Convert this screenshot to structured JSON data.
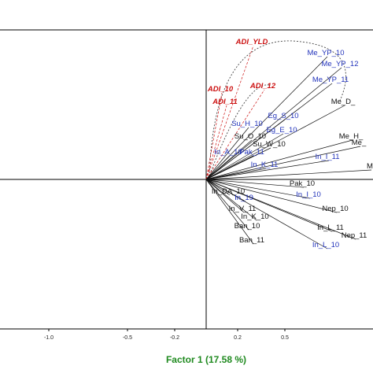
{
  "chart_data": {
    "type": "scatter",
    "subtype": "biplot-vectors",
    "title": "",
    "xlabel": "Factor 1 (17.58 %)",
    "xlabel_color": "#1f8a1f",
    "ylabel": "",
    "xlim": [
      -1.0,
      1.05
    ],
    "ylim": [
      -1.0,
      1.0
    ],
    "x_ticks": [
      -1.0,
      -0.5,
      -0.2,
      0.2,
      0.5
    ],
    "x_tick_labels": [
      "-1.0",
      "-0.5",
      "-0.2",
      "0.2",
      "0.5"
    ],
    "origin": [
      0,
      0
    ],
    "colors": {
      "adi": "#cc1111",
      "blue": "#2233bb",
      "black": "#111111",
      "axis": "#000000",
      "ellipse": "#444444"
    },
    "vectors": [
      {
        "label": "ADI_YLD",
        "x": 0.3,
        "y": 0.85,
        "group": "adi"
      },
      {
        "label": "Me_YP_10",
        "x": 0.77,
        "y": 0.78,
        "group": "blue"
      },
      {
        "label": "Me_YP_12",
        "x": 0.86,
        "y": 0.71,
        "group": "blue"
      },
      {
        "label": "Me_YP_11",
        "x": 0.8,
        "y": 0.61,
        "group": "blue"
      },
      {
        "label": "ADI_10",
        "x": 0.1,
        "y": 0.55,
        "group": "adi"
      },
      {
        "label": "ADI_12",
        "x": 0.37,
        "y": 0.57,
        "group": "adi"
      },
      {
        "label": "ADI_11",
        "x": 0.13,
        "y": 0.47,
        "group": "adi"
      },
      {
        "label": "Me_D_",
        "x": 0.88,
        "y": 0.47,
        "group": "black"
      },
      {
        "label": "Eg_S_10",
        "x": 0.5,
        "y": 0.38,
        "group": "blue"
      },
      {
        "label": "Su_H_10",
        "x": 0.27,
        "y": 0.33,
        "group": "blue"
      },
      {
        "label": "Eg_E_10",
        "x": 0.49,
        "y": 0.29,
        "group": "blue"
      },
      {
        "label": "Su_O_10",
        "x": 0.29,
        "y": 0.25,
        "group": "black"
      },
      {
        "label": "Me_H_",
        "x": 0.93,
        "y": 0.25,
        "group": "black"
      },
      {
        "label": "Su_W_10",
        "x": 0.41,
        "y": 0.2,
        "group": "black"
      },
      {
        "label": "Me_",
        "x": 0.98,
        "y": 0.21,
        "group": "black"
      },
      {
        "label": "In_A_10",
        "x": 0.15,
        "y": 0.15,
        "group": "blue"
      },
      {
        "label": "Pak_11",
        "x": 0.3,
        "y": 0.15,
        "group": "blue"
      },
      {
        "label": "In_I_11",
        "x": 0.78,
        "y": 0.12,
        "group": "blue"
      },
      {
        "label": "In_K_11",
        "x": 0.38,
        "y": 0.07,
        "group": "blue"
      },
      {
        "label": "M",
        "x": 1.05,
        "y": 0.06,
        "group": "black"
      },
      {
        "label": "Pak_10",
        "x": 0.62,
        "y": -0.05,
        "group": "black"
      },
      {
        "label": "In_DA_10",
        "x": 0.15,
        "y": -0.1,
        "group": "black"
      },
      {
        "label": "In_I_10",
        "x": 0.66,
        "y": -0.12,
        "group": "blue"
      },
      {
        "label": "In_19",
        "x": 0.25,
        "y": -0.14,
        "group": "blue"
      },
      {
        "label": "In_V_11",
        "x": 0.24,
        "y": -0.21,
        "group": "black"
      },
      {
        "label": "Nep_10",
        "x": 0.83,
        "y": -0.21,
        "group": "black"
      },
      {
        "label": "In_K_10",
        "x": 0.32,
        "y": -0.26,
        "group": "black"
      },
      {
        "label": "Ban_10",
        "x": 0.27,
        "y": -0.32,
        "group": "black"
      },
      {
        "label": "In_L_11",
        "x": 0.8,
        "y": -0.33,
        "group": "black"
      },
      {
        "label": "Nep_11",
        "x": 0.95,
        "y": -0.38,
        "group": "black"
      },
      {
        "label": "Ban_11",
        "x": 0.3,
        "y": -0.41,
        "group": "black"
      },
      {
        "label": "In_L_10",
        "x": 0.77,
        "y": -0.44,
        "group": "blue"
      }
    ]
  }
}
